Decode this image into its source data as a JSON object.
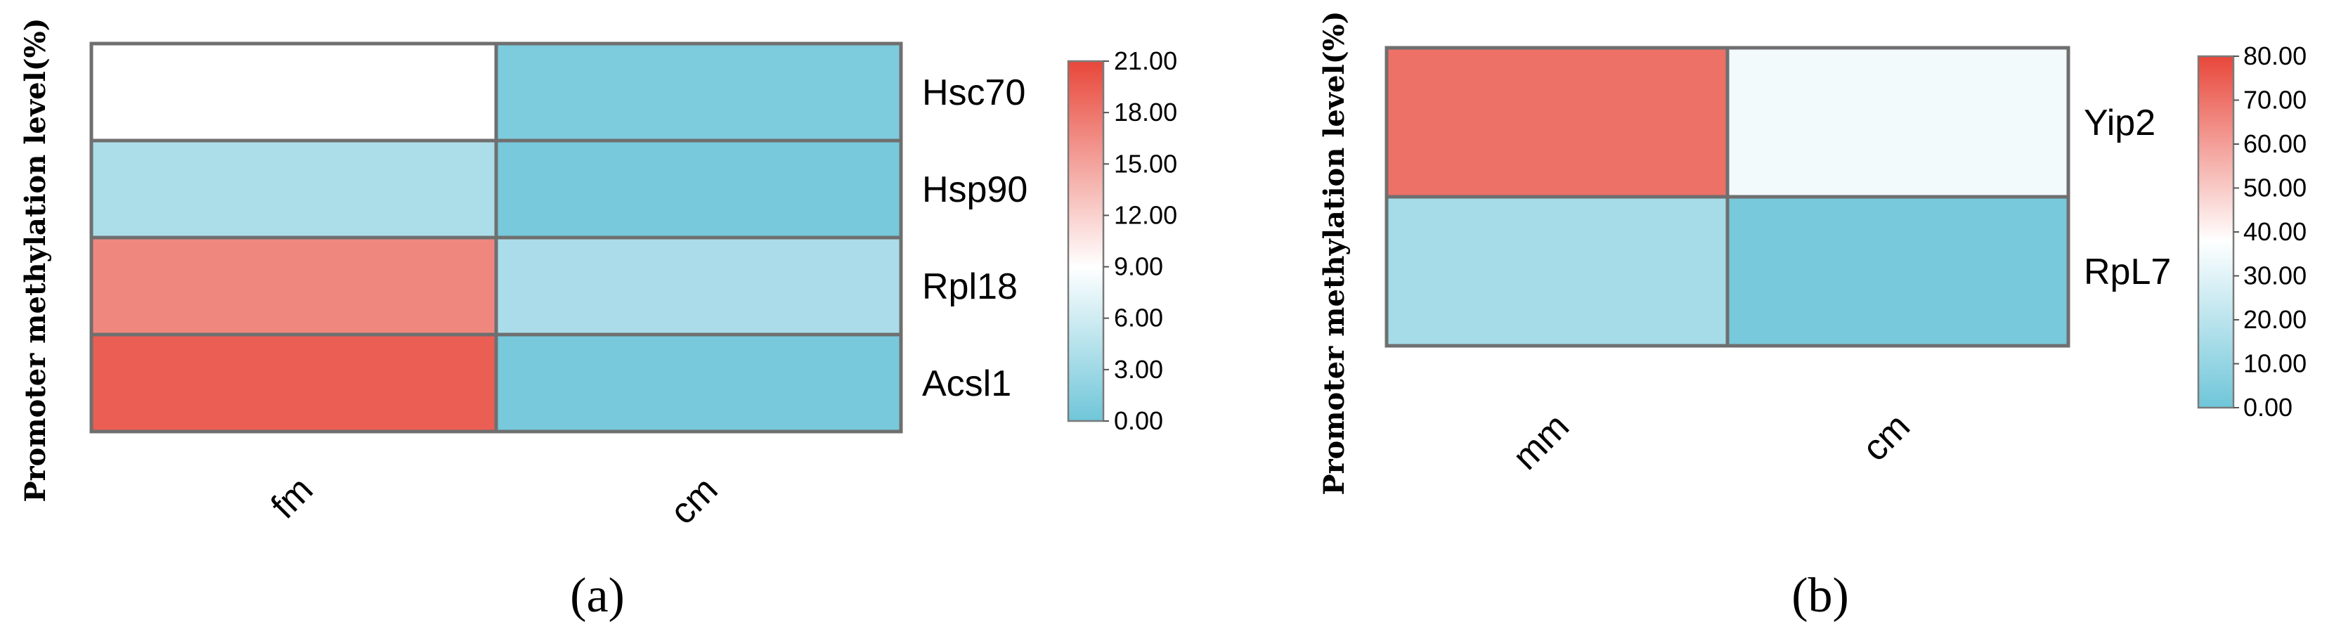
{
  "chart_data": [
    {
      "type": "heatmap",
      "panel_label": "(a)",
      "ylabel": "Promoter methylation level(%)",
      "columns": [
        "fm",
        "cm"
      ],
      "rows": [
        "Hsc70",
        "Hsp90",
        "Rpl18",
        "Acsl1"
      ],
      "values": [
        [
          9.0,
          0.9
        ],
        [
          3.8,
          0.5
        ],
        [
          16.8,
          3.7
        ],
        [
          19.5,
          0.5
        ]
      ],
      "colorbar": {
        "min": 0,
        "max": 21,
        "ticks": [
          "21.00",
          "18.00",
          "15.00",
          "12.00",
          "9.00",
          "6.00",
          "3.00",
          "0.00"
        ],
        "colors": {
          "low": "#6fc6d9",
          "mid": "#ffffff",
          "high": "#e8473a"
        },
        "mid_value": 9.0
      }
    },
    {
      "type": "heatmap",
      "panel_label": "(b)",
      "ylabel": "Promoter methylation level(%)",
      "columns": [
        "mm",
        "cm"
      ],
      "rows": [
        "Yip2",
        "RpL7"
      ],
      "values": [
        [
          70.5,
          34.5
        ],
        [
          14.5,
          2.0
        ]
      ],
      "colorbar": {
        "min": 0,
        "max": 80,
        "ticks": [
          "80.00",
          "70.00",
          "60.00",
          "50.00",
          "40.00",
          "30.00",
          "20.00",
          "10.00",
          "0.00"
        ],
        "colors": {
          "low": "#6fc6d9",
          "mid": "#ffffff",
          "high": "#e8473a"
        },
        "mid_value": 38.0
      }
    }
  ]
}
